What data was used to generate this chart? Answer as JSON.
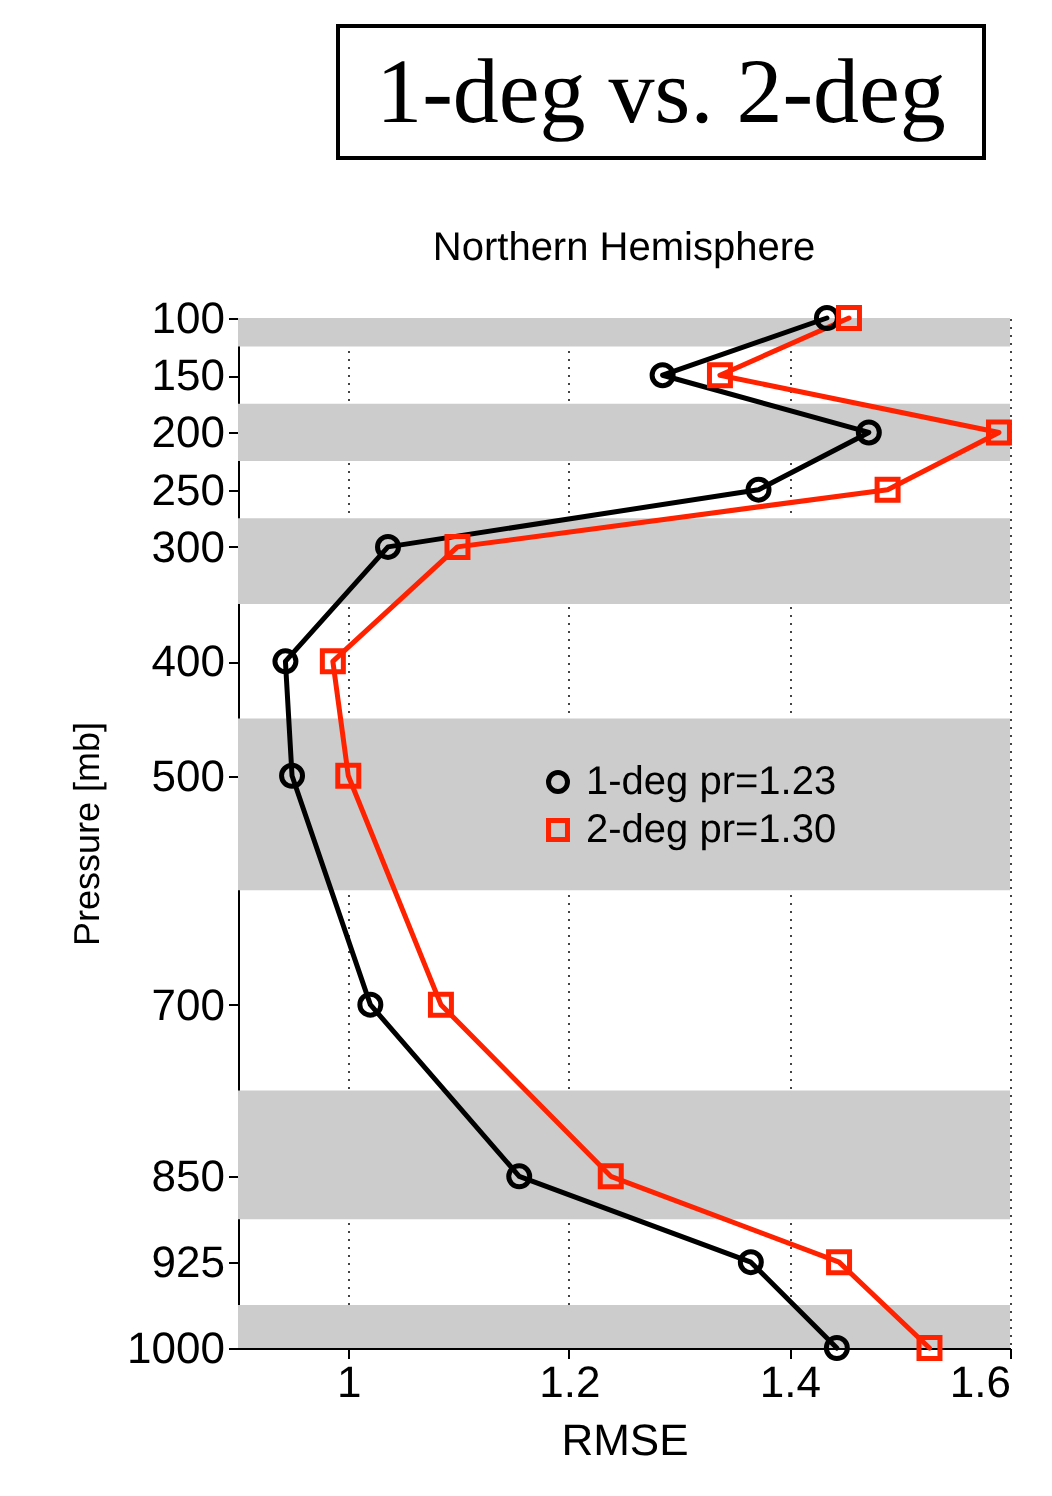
{
  "chart_data": {
    "type": "line",
    "title": "1-deg vs. 2-deg",
    "subtitle": "Northern Hemisphere",
    "xlabel": "RMSE",
    "ylabel": "Pressure [mb]",
    "orientation": "horizontal",
    "x": [
      100,
      150,
      200,
      250,
      300,
      400,
      500,
      700,
      850,
      925,
      1000
    ],
    "series": [
      {
        "name": "1-deg pr=1.23",
        "color": "#000000",
        "marker": "circle",
        "values": [
          1.434,
          1.285,
          1.472,
          1.372,
          1.036,
          0.943,
          0.949,
          1.02,
          1.155,
          1.365,
          1.443
        ]
      },
      {
        "name": "2-deg pr=1.30",
        "color": "#ff2200",
        "marker": "square",
        "values": [
          1.454,
          1.337,
          1.59,
          1.489,
          1.099,
          0.986,
          1.0,
          1.084,
          1.238,
          1.445,
          1.527
        ]
      }
    ],
    "xlim": [
      0.9,
      1.6
    ],
    "xticks": [
      1,
      1.2,
      1.4,
      1.6
    ],
    "ylim": [
      1000,
      100
    ],
    "yticks": [
      100,
      150,
      200,
      250,
      300,
      400,
      500,
      700,
      850,
      925,
      1000
    ],
    "bands": [
      {
        "axis": "y",
        "from": 100,
        "to": 125,
        "color": "#cccccc"
      },
      {
        "axis": "y",
        "from": 175,
        "to": 225,
        "color": "#cccccc"
      },
      {
        "axis": "y",
        "from": 275,
        "to": 350,
        "color": "#cccccc"
      },
      {
        "axis": "y",
        "from": 450,
        "to": 600,
        "color": "#cccccc"
      },
      {
        "axis": "y",
        "from": 775,
        "to": 887.5,
        "color": "#cccccc"
      },
      {
        "axis": "y",
        "from": 962.5,
        "to": 1000,
        "color": "#cccccc"
      }
    ],
    "grid": "x",
    "legend": "right"
  }
}
